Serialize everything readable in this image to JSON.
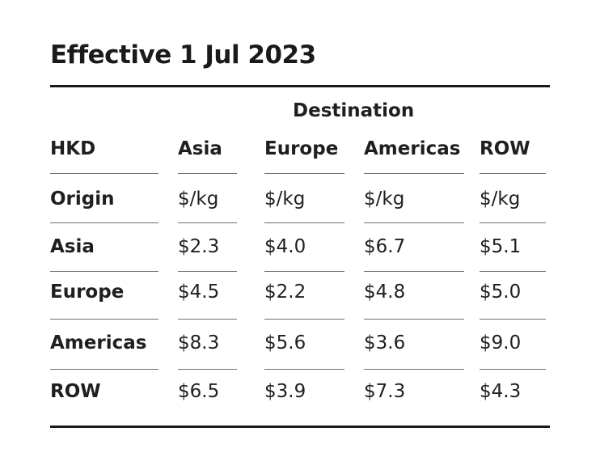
{
  "title": "Effective 1 Jul 2023",
  "table": {
    "group_header": "Destination",
    "corner": "HKD",
    "columns": [
      "Asia",
      "Europe",
      "Americas",
      "ROW"
    ],
    "unit_row": {
      "label": "Origin",
      "values": [
        "$/kg",
        "$/kg",
        "$/kg",
        "$/kg"
      ]
    },
    "rows": [
      {
        "origin": "Asia",
        "values": [
          "$2.3",
          "$4.0",
          "$6.7",
          "$5.1"
        ]
      },
      {
        "origin": "Europe",
        "values": [
          "$4.5",
          "$2.2",
          "$4.8",
          "$5.0"
        ]
      },
      {
        "origin": "Americas",
        "values": [
          "$8.3",
          "$5.6",
          "$3.6",
          "$9.0"
        ]
      },
      {
        "origin": "ROW",
        "values": [
          "$6.5",
          "$3.9",
          "$7.3",
          "$4.3"
        ]
      }
    ]
  }
}
